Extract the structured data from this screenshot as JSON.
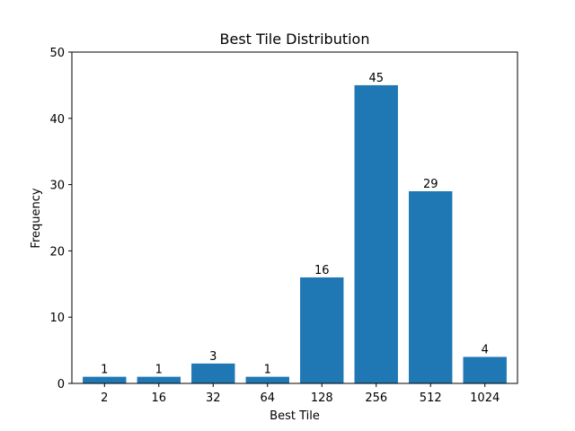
{
  "chart_data": {
    "type": "bar",
    "title": "Best Tile Distribution",
    "xlabel": "Best Tile",
    "ylabel": "Frequency",
    "categories": [
      "2",
      "16",
      "32",
      "64",
      "128",
      "256",
      "512",
      "1024"
    ],
    "values": [
      1,
      1,
      3,
      1,
      16,
      45,
      29,
      4
    ],
    "ylim": [
      0,
      50
    ],
    "yticks": [
      0,
      10,
      20,
      30,
      40,
      50
    ],
    "grid": false,
    "bar_color": "#1f77b4",
    "data_labels": true
  }
}
